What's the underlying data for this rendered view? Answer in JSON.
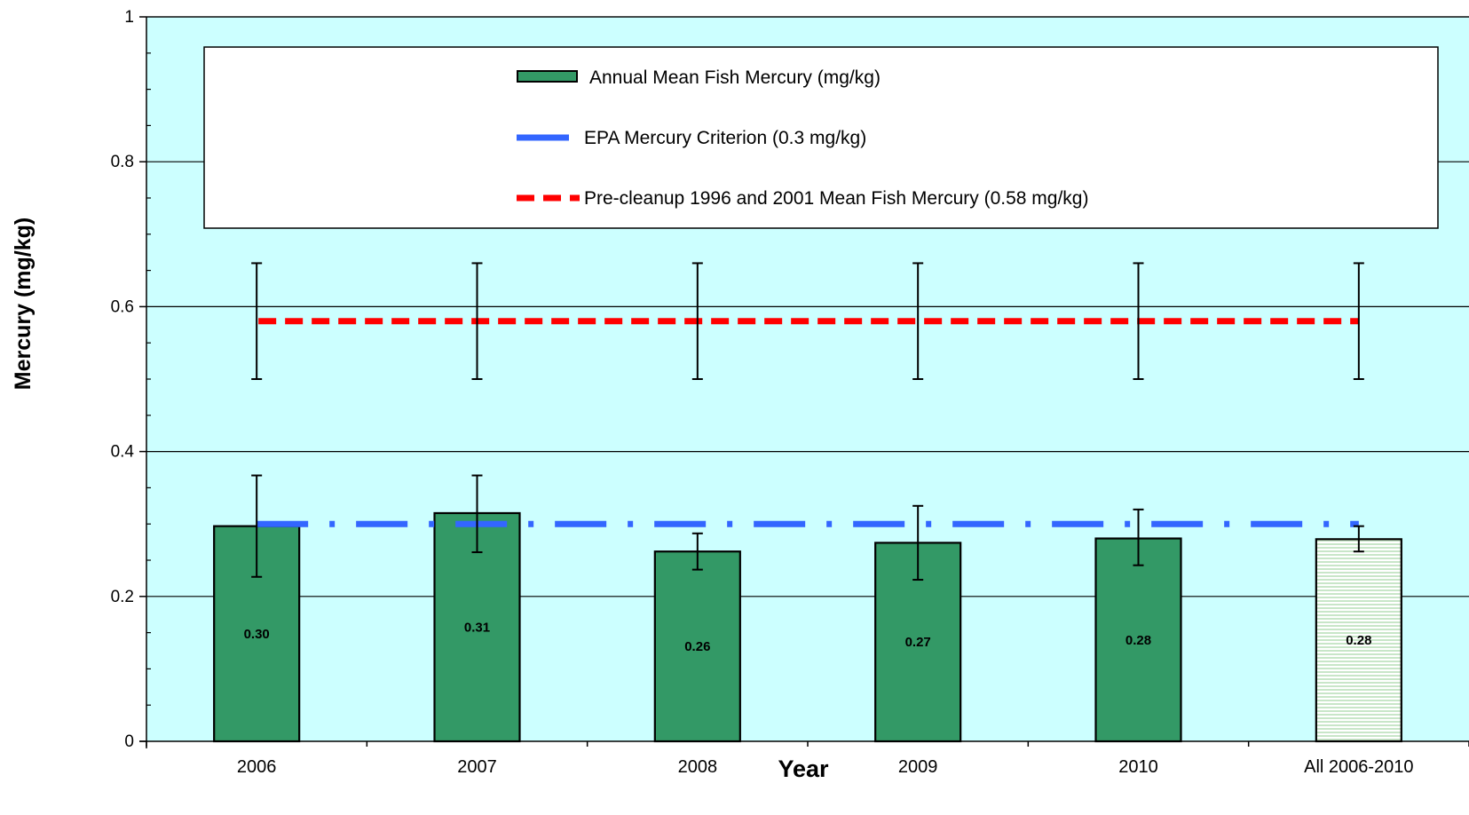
{
  "chart_data": {
    "type": "bar",
    "xlabel": "Year",
    "ylabel": "Mercury (mg/kg)",
    "ylim": [
      0,
      1
    ],
    "yticks": [
      "0",
      "0.2",
      "0.4",
      "0.6",
      "0.8",
      "1"
    ],
    "ytick_values": [
      0,
      0.2,
      0.4,
      0.6,
      0.8,
      1
    ],
    "grid": true,
    "legend_position": "top",
    "categories": [
      "2006",
      "2007",
      "2008",
      "2009",
      "2010",
      "All 2006-2010"
    ],
    "series": [
      {
        "name": "Annual Mean Fish Mercury (mg/kg)",
        "values": [
          0.297,
          0.315,
          0.262,
          0.274,
          0.28,
          0.279
        ],
        "data_labels": [
          "0.30",
          "0.31",
          "0.26",
          "0.27",
          "0.28",
          "0.28"
        ],
        "error_low": [
          0.227,
          0.261,
          0.237,
          0.223,
          0.243,
          0.262
        ],
        "error_high": [
          0.367,
          0.367,
          0.287,
          0.325,
          0.32,
          0.297
        ],
        "color": "#339966",
        "highlight_color": "#c8e6c8"
      },
      {
        "name": "EPA Mercury Criterion (0.3 mg/kg)",
        "type": "line",
        "value": 0.3,
        "color": "#3366ff"
      },
      {
        "name": "Pre-cleanup 1996 and 2001 Mean Fish Mercury (0.58 mg/kg)",
        "type": "line",
        "value": 0.58,
        "error_low": 0.5,
        "error_high": 0.66,
        "color": "#ff0000"
      }
    ],
    "colors": {
      "plot_background": "#ccffff",
      "gridline": "#000000"
    }
  }
}
